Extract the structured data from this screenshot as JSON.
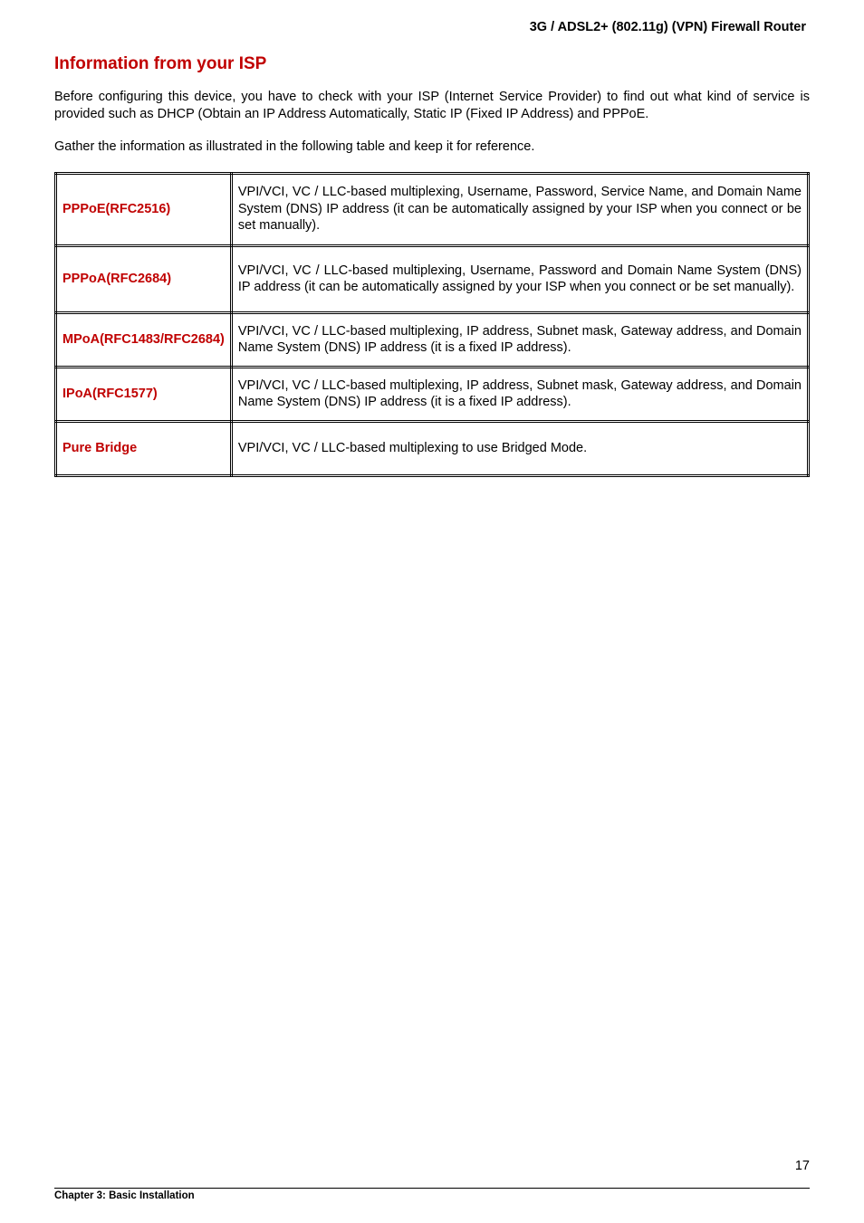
{
  "header": {
    "product_title": "3G / ADSL2+ (802.11g) (VPN) Firewall Router"
  },
  "section": {
    "title": "Information from your ISP",
    "intro_paragraph": "Before configuring this device, you have to check with your ISP (Internet Service Provider) to find out what kind of service is provided such as DHCP (Obtain an IP Address Automatically, Static IP (Fixed IP Address) and PPPoE.",
    "gather_paragraph": "Gather the information as illustrated in the following table and keep it for reference."
  },
  "table": {
    "rows": [
      {
        "label": "PPPoE(RFC2516)",
        "description": "VPI/VCI, VC / LLC-based multiplexing, Username, Password, Service Name, and Domain Name System (DNS) IP address (it can be automatically assigned by your ISP when you connect or be set manually)."
      },
      {
        "label": "PPPoA(RFC2684)",
        "description": "VPI/VCI, VC / LLC-based multiplexing, Username, Password and Domain Name System (DNS) IP address (it can be automatically assigned by your ISP when you connect or be set manually)."
      },
      {
        "label": "MPoA(RFC1483/RFC2684)",
        "description": "VPI/VCI, VC / LLC-based multiplexing, IP address, Subnet mask, Gateway address, and Domain Name System (DNS) IP address (it is a fixed IP address)."
      },
      {
        "label": "IPoA(RFC1577)",
        "description": "VPI/VCI, VC / LLC-based multiplexing, IP address, Subnet mask, Gateway address, and Domain Name System (DNS) IP address (it is a fixed IP address)."
      },
      {
        "label": "Pure Bridge",
        "description": "VPI/VCI, VC / LLC-based multiplexing to use Bridged Mode."
      }
    ]
  },
  "footer": {
    "chapter": "Chapter 3: Basic Installation",
    "page_number": "17"
  },
  "colors": {
    "accent_red": "#c00000",
    "text_black": "#000000",
    "background": "#ffffff"
  },
  "typography": {
    "body_font": "Arial",
    "body_size_pt": 11,
    "section_title_size_pt": 14,
    "footer_size_pt": 9
  }
}
